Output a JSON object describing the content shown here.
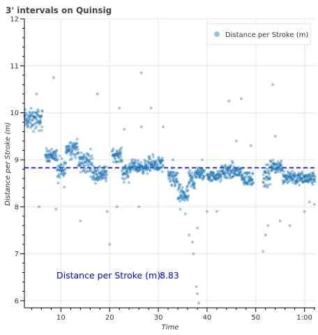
{
  "chart_data": {
    "type": "scatter",
    "title": "3' intervals on Quinsig",
    "xlabel": "Time",
    "ylabel": "Distance per Stroke (m)",
    "xlim": [
      2.5,
      62.2
    ],
    "ylim": [
      5.85,
      12.0
    ],
    "x_ticks": [
      {
        "value": 10,
        "label": "10"
      },
      {
        "value": 20,
        "label": "20"
      },
      {
        "value": 30,
        "label": "30"
      },
      {
        "value": 40,
        "label": "40"
      },
      {
        "value": 50,
        "label": "50"
      },
      {
        "value": 60,
        "label": "1:00"
      }
    ],
    "y_ticks": [
      {
        "value": 6,
        "label": "6"
      },
      {
        "value": 7,
        "label": "7"
      },
      {
        "value": 8,
        "label": "8"
      },
      {
        "value": 9,
        "label": "9"
      },
      {
        "value": 10,
        "label": "10"
      },
      {
        "value": 11,
        "label": "11"
      },
      {
        "value": 12,
        "label": "12"
      }
    ],
    "grid": true,
    "legend": {
      "position": "top-right",
      "entries": [
        "Distance per Stroke (m)"
      ]
    },
    "colors": {
      "points": "#1f77b4",
      "mean_line": "#0000ff",
      "annotation": "#0000cc"
    },
    "mean_line": {
      "value": 8.83
    },
    "annotation": {
      "label": "Distance per Stroke (m):",
      "value": "8.83"
    },
    "series": [
      {
        "name": "Distance per Stroke (m)",
        "segments": [
          {
            "x": [
              2.5,
              6.2
            ],
            "mean": 9.85,
            "spread": 0.2
          },
          {
            "x": [
              6.8,
              9.2
            ],
            "mean": 9.1,
            "spread": 0.12
          },
          {
            "x": [
              9.2,
              11.0
            ],
            "mean": 8.75,
            "spread": 0.25
          },
          {
            "x": [
              11.0,
              13.5
            ],
            "mean": 9.25,
            "spread": 0.18
          },
          {
            "x": [
              13.5,
              16.5
            ],
            "mean": 8.95,
            "spread": 0.22
          },
          {
            "x": [
              16.5,
              19.5
            ],
            "mean": 8.7,
            "spread": 0.15
          },
          {
            "x": [
              20.5,
              22.5
            ],
            "mean": 9.1,
            "spread": 0.12
          },
          {
            "x": [
              22.5,
              24.0
            ],
            "mean": 8.75,
            "spread": 0.2
          },
          {
            "x": [
              24.0,
              28.0
            ],
            "mean": 8.85,
            "spread": 0.12
          },
          {
            "x": [
              28.0,
              31.0
            ],
            "mean": 8.9,
            "spread": 0.15
          },
          {
            "x": [
              32.0,
              34.0
            ],
            "mean": 8.6,
            "spread": 0.18
          },
          {
            "x": [
              34.0,
              36.2
            ],
            "mean": 8.25,
            "spread": 0.18
          },
          {
            "x": [
              36.2,
              37.5
            ],
            "mean": 8.55,
            "spread": 0.2
          },
          {
            "x": [
              37.5,
              39.5
            ],
            "mean": 8.7,
            "spread": 0.12
          },
          {
            "x": [
              40.0,
              43.0
            ],
            "mean": 8.65,
            "spread": 0.1
          },
          {
            "x": [
              43.0,
              47.0
            ],
            "mean": 8.75,
            "spread": 0.15
          },
          {
            "x": [
              47.0,
              49.5
            ],
            "mean": 8.6,
            "spread": 0.15
          },
          {
            "x": [
              51.5,
              53.0
            ],
            "mean": 8.65,
            "spread": 0.2
          },
          {
            "x": [
              53.0,
              55.5
            ],
            "mean": 8.85,
            "spread": 0.12
          },
          {
            "x": [
              55.5,
              58.0
            ],
            "mean": 8.65,
            "spread": 0.15
          },
          {
            "x": [
              58.0,
              62.2
            ],
            "mean": 8.6,
            "spread": 0.12
          }
        ],
        "outliers": [
          [
            5.0,
            10.4
          ],
          [
            8.5,
            10.75
          ],
          [
            17.5,
            10.4
          ],
          [
            26.5,
            10.85
          ],
          [
            22.0,
            10.1
          ],
          [
            28.5,
            10.1
          ],
          [
            26.5,
            9.7
          ],
          [
            31.0,
            9.7
          ],
          [
            23.0,
            9.65
          ],
          [
            5.5,
            8.0
          ],
          [
            9.0,
            7.95
          ],
          [
            14.0,
            7.7
          ],
          [
            20.0,
            7.2
          ],
          [
            19.5,
            7.9
          ],
          [
            21.5,
            8.0
          ],
          [
            26.0,
            8.0
          ],
          [
            34.5,
            7.95
          ],
          [
            35.5,
            7.85
          ],
          [
            36.3,
            7.4
          ],
          [
            37.0,
            7.25
          ],
          [
            37.2,
            7.0
          ],
          [
            38.0,
            7.55
          ],
          [
            37.8,
            6.3
          ],
          [
            38.0,
            6.15
          ],
          [
            38.3,
            5.95
          ],
          [
            40.0,
            7.9
          ],
          [
            42.0,
            7.9
          ],
          [
            44.5,
            10.25
          ],
          [
            47.0,
            10.3
          ],
          [
            53.5,
            10.6
          ],
          [
            46.0,
            9.4
          ],
          [
            54.0,
            9.5
          ],
          [
            52.0,
            7.4
          ],
          [
            51.5,
            7.05
          ],
          [
            52.5,
            7.6
          ],
          [
            55.0,
            7.7
          ],
          [
            57.0,
            7.6
          ],
          [
            60.0,
            7.9
          ],
          [
            61.0,
            8.1
          ],
          [
            62.0,
            8.05
          ],
          [
            39.0,
            9.0
          ],
          [
            33.0,
            9.0
          ],
          [
            49.0,
            9.3
          ]
        ]
      }
    ]
  }
}
